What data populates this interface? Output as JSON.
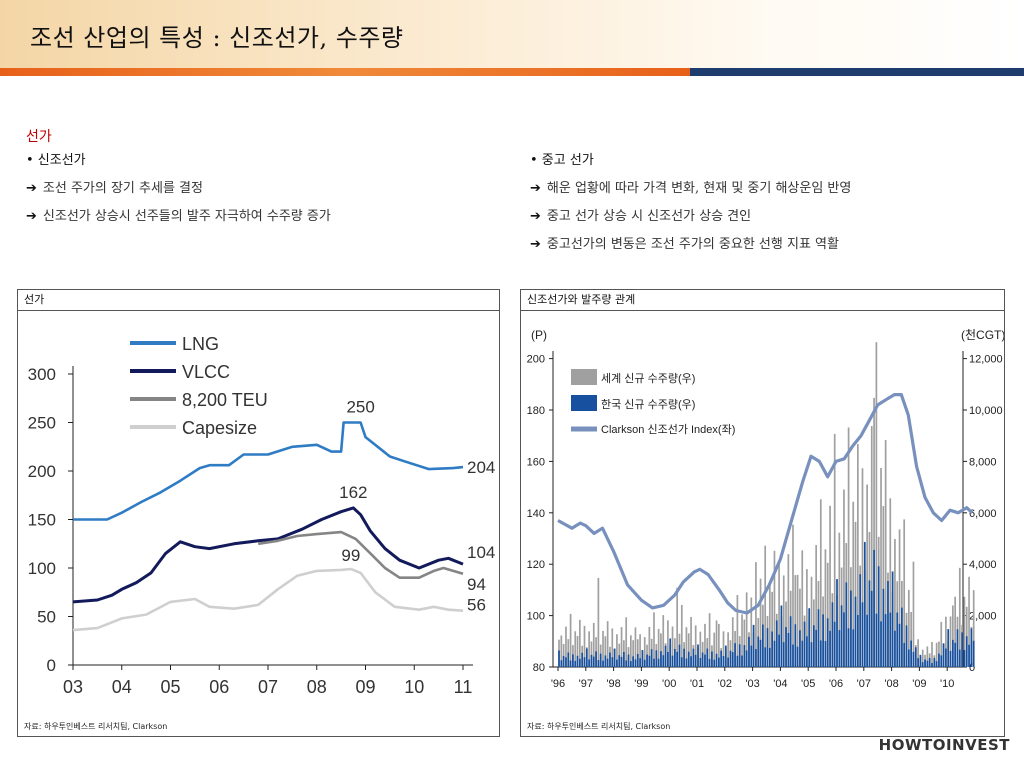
{
  "header": {
    "title": "조선 산업의 특성 : 신조선가, 수주량"
  },
  "section_title": "선가",
  "left_bullets": {
    "title": "• 신조선가",
    "items": [
      "조선 주가의 장기 추세를 결정",
      "신조선가 상승시 선주들의 발주 자극하여 수주량 증가"
    ]
  },
  "right_bullets": {
    "title": "• 중고 선가",
    "items": [
      "해운 업황에 따라 가격 변화, 현재 및 중기 해상운임 반영",
      "중고 선가 상승 시 신조선가 상승 견인",
      "중고선가의 변동은 조선 주가의 중요한 선행 지표 역활"
    ]
  },
  "panel_left": {
    "title": "선가",
    "source": "자료: 하우투인베스트 리서치팀, Clarkson"
  },
  "panel_right": {
    "title": "신조선가와 발주량 관계",
    "source": "자료: 하우투인베스트 리서치팀, Clarkson"
  },
  "logo": "HOWTOINVEST",
  "colors": {
    "lng": "#2f7bc4",
    "vlcc": "#121a5c",
    "teu": "#858585",
    "capesize": "#cfcfcf",
    "world_orders": "#a0a0a0",
    "korea_orders": "#17509e",
    "clarkson": "#7890bd",
    "orange_band": "#e7601a",
    "navy_band": "#1f3c6e"
  },
  "chart_data": [
    {
      "type": "line",
      "x_ticks": [
        "03",
        "04",
        "05",
        "06",
        "07",
        "08",
        "09",
        "10",
        "11"
      ],
      "ylim": [
        0,
        300
      ],
      "y_ticks": [
        "0",
        "50",
        "100",
        "150",
        "200",
        "250",
        "300"
      ],
      "legend_placement": "top-left",
      "series": [
        {
          "name": "LNG",
          "points": [
            [
              2003.0,
              150
            ],
            [
              2003.3,
              150
            ],
            [
              2003.7,
              150
            ],
            [
              2004.0,
              157
            ],
            [
              2004.4,
              168
            ],
            [
              2004.8,
              178
            ],
            [
              2005.2,
              190
            ],
            [
              2005.6,
              203
            ],
            [
              2005.8,
              206
            ],
            [
              2006.2,
              206
            ],
            [
              2006.5,
              217
            ],
            [
              2007.0,
              217
            ],
            [
              2007.5,
              225
            ],
            [
              2008.0,
              227
            ],
            [
              2008.3,
              220
            ],
            [
              2008.5,
              220
            ],
            [
              2008.55,
              250
            ],
            [
              2008.9,
              250
            ],
            [
              2009.0,
              235
            ],
            [
              2009.5,
              215
            ],
            [
              2009.8,
              210
            ],
            [
              2010.3,
              202
            ],
            [
              2010.8,
              203
            ],
            [
              2011.0,
              204
            ]
          ],
          "labels": [
            {
              "text": "250",
              "x": 2008.9,
              "y": 250
            },
            {
              "text": "204",
              "x": 2011.0,
              "y": 204
            }
          ]
        },
        {
          "name": "VLCC",
          "points": [
            [
              2003.0,
              65
            ],
            [
              2003.5,
              67
            ],
            [
              2003.8,
              72
            ],
            [
              2004.0,
              78
            ],
            [
              2004.3,
              85
            ],
            [
              2004.6,
              95
            ],
            [
              2004.9,
              115
            ],
            [
              2005.2,
              127
            ],
            [
              2005.5,
              122
            ],
            [
              2005.8,
              120
            ],
            [
              2006.3,
              125
            ],
            [
              2006.8,
              128
            ],
            [
              2007.2,
              130
            ],
            [
              2007.7,
              140
            ],
            [
              2008.1,
              150
            ],
            [
              2008.5,
              158
            ],
            [
              2008.75,
              162
            ],
            [
              2008.9,
              155
            ],
            [
              2009.1,
              138
            ],
            [
              2009.4,
              120
            ],
            [
              2009.7,
              108
            ],
            [
              2010.1,
              100
            ],
            [
              2010.5,
              108
            ],
            [
              2010.7,
              110
            ],
            [
              2011.0,
              104
            ]
          ],
          "labels": [
            {
              "text": "162",
              "x": 2008.75,
              "y": 162
            },
            {
              "text": "104",
              "x": 2011.0,
              "y": 104
            }
          ]
        },
        {
          "name": "8,200 TEU",
          "points": [
            [
              2006.8,
              125
            ],
            [
              2007.2,
              128
            ],
            [
              2007.6,
              133
            ],
            [
              2008.0,
              135
            ],
            [
              2008.5,
              137
            ],
            [
              2008.8,
              130
            ],
            [
              2009.1,
              115
            ],
            [
              2009.4,
              100
            ],
            [
              2009.7,
              90
            ],
            [
              2010.1,
              90
            ],
            [
              2010.4,
              97
            ],
            [
              2010.6,
              100
            ],
            [
              2011.0,
              94
            ]
          ],
          "labels": [
            {
              "text": "94",
              "x": 2011.0,
              "y": 94
            }
          ]
        },
        {
          "name": "Capesize",
          "points": [
            [
              2003.0,
              36
            ],
            [
              2003.5,
              38
            ],
            [
              2004.0,
              48
            ],
            [
              2004.5,
              52
            ],
            [
              2005.0,
              65
            ],
            [
              2005.5,
              68
            ],
            [
              2005.8,
              60
            ],
            [
              2006.3,
              58
            ],
            [
              2006.8,
              62
            ],
            [
              2007.2,
              78
            ],
            [
              2007.6,
              92
            ],
            [
              2008.0,
              97
            ],
            [
              2008.5,
              98
            ],
            [
              2008.7,
              99
            ],
            [
              2008.9,
              95
            ],
            [
              2009.2,
              75
            ],
            [
              2009.6,
              60
            ],
            [
              2010.1,
              57
            ],
            [
              2010.4,
              60
            ],
            [
              2010.7,
              57
            ],
            [
              2011.0,
              56
            ]
          ],
          "labels": [
            {
              "text": "99",
              "x": 2008.7,
              "y": 99
            },
            {
              "text": "56",
              "x": 2011.0,
              "y": 56
            }
          ]
        }
      ]
    },
    {
      "type": "bar",
      "x_ticks": [
        "'96",
        "'97",
        "'98",
        "'99",
        "'00",
        "'01",
        "'02",
        "'03",
        "'04",
        "'05",
        "'06",
        "'07",
        "'08",
        "'09",
        "'10"
      ],
      "ylim": [
        80,
        200
      ],
      "y_ticks": [
        "80",
        "100",
        "120",
        "140",
        "160",
        "180",
        "200"
      ],
      "ylabel": "(P)",
      "y2lim": [
        0,
        12000
      ],
      "y2_ticks": [
        "0",
        "2,000",
        "4,000",
        "6,000",
        "8,000",
        "10,000",
        "12,000"
      ],
      "y2label": "(천CGT)",
      "legend_placement": "top-left",
      "series": [
        {
          "name": "세계 신규 수주량(우)",
          "axis": "right",
          "kind": "bar",
          "monthly_anchor": [
            [
              1996.0,
              1200
            ],
            [
              1997.0,
              1400
            ],
            [
              1998.0,
              1300
            ],
            [
              1999.0,
              1100
            ],
            [
              2000.0,
              1600
            ],
            [
              2001.0,
              1400
            ],
            [
              2002.0,
              1200
            ],
            [
              2003.0,
              2400
            ],
            [
              2003.5,
              3000
            ],
            [
              2004.0,
              3600
            ],
            [
              2005.0,
              3300
            ],
            [
              2006.0,
              5000
            ],
            [
              2007.0,
              6800
            ],
            [
              2007.5,
              8000
            ],
            [
              2008.0,
              5500
            ],
            [
              2008.6,
              3000
            ],
            [
              2009.0,
              700
            ],
            [
              2009.5,
              600
            ],
            [
              2010.0,
              1800
            ],
            [
              2010.6,
              2600
            ]
          ]
        },
        {
          "name": "한국 신규 수주량(우)",
          "axis": "right",
          "kind": "bar",
          "monthly_anchor": [
            [
              1996.0,
              400
            ],
            [
              1997.0,
              450
            ],
            [
              1998.0,
              450
            ],
            [
              1999.0,
              400
            ],
            [
              2000.0,
              700
            ],
            [
              2001.0,
              550
            ],
            [
              2002.0,
              500
            ],
            [
              2003.0,
              1000
            ],
            [
              2003.5,
              1300
            ],
            [
              2004.0,
              1500
            ],
            [
              2005.0,
              1400
            ],
            [
              2006.0,
              2100
            ],
            [
              2007.0,
              3000
            ],
            [
              2007.5,
              3500
            ],
            [
              2008.0,
              2400
            ],
            [
              2008.6,
              1300
            ],
            [
              2009.0,
              300
            ],
            [
              2009.5,
              250
            ],
            [
              2010.0,
              900
            ],
            [
              2010.6,
              1200
            ]
          ]
        },
        {
          "name": "Clarkson 신조선가 Index(좌)",
          "axis": "left",
          "kind": "line",
          "points": [
            [
              1996.0,
              137
            ],
            [
              1996.5,
              134
            ],
            [
              1996.8,
              136
            ],
            [
              1997.0,
              135
            ],
            [
              1997.3,
              132
            ],
            [
              1997.6,
              134
            ],
            [
              1998.0,
              125
            ],
            [
              1998.5,
              112
            ],
            [
              1999.0,
              106
            ],
            [
              1999.4,
              103
            ],
            [
              1999.8,
              104
            ],
            [
              2000.2,
              108
            ],
            [
              2000.5,
              113
            ],
            [
              2000.9,
              117
            ],
            [
              2001.1,
              118
            ],
            [
              2001.4,
              116
            ],
            [
              2001.8,
              110
            ],
            [
              2002.1,
              105
            ],
            [
              2002.4,
              102
            ],
            [
              2002.8,
              101
            ],
            [
              2003.2,
              104
            ],
            [
              2003.6,
              112
            ],
            [
              2004.0,
              122
            ],
            [
              2004.4,
              137
            ],
            [
              2004.8,
              152
            ],
            [
              2005.1,
              162
            ],
            [
              2005.4,
              160
            ],
            [
              2005.7,
              154
            ],
            [
              2006.0,
              160
            ],
            [
              2006.3,
              161
            ],
            [
              2006.6,
              166
            ],
            [
              2006.9,
              170
            ],
            [
              2007.2,
              176
            ],
            [
              2007.5,
              182
            ],
            [
              2007.8,
              184
            ],
            [
              2008.1,
              186
            ],
            [
              2008.35,
              186
            ],
            [
              2008.6,
              178
            ],
            [
              2008.9,
              158
            ],
            [
              2009.2,
              146
            ],
            [
              2009.5,
              140
            ],
            [
              2009.8,
              137
            ],
            [
              2010.1,
              141
            ],
            [
              2010.4,
              140
            ],
            [
              2010.7,
              142
            ],
            [
              2010.9,
              140
            ]
          ]
        }
      ]
    }
  ]
}
